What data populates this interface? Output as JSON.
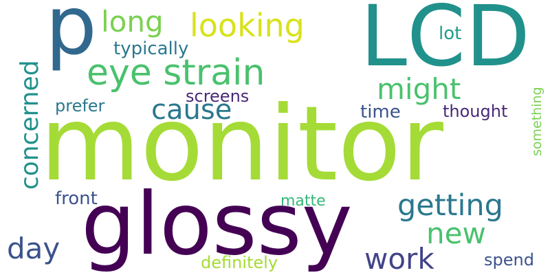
{
  "word_cloud": {
    "words": [
      {
        "text": "monitor",
        "color": "#a5db36"
      },
      {
        "text": "glossy",
        "color": "#440154"
      },
      {
        "text": "LCD",
        "color": "#21918c"
      },
      {
        "text": "p",
        "color": "#31688e"
      },
      {
        "text": "eye strain",
        "color": "#4ac16d"
      },
      {
        "text": "looking",
        "color": "#d8e219"
      },
      {
        "text": "getting",
        "color": "#2a788e"
      },
      {
        "text": "long",
        "color": "#7ad151"
      },
      {
        "text": "concerned",
        "color": "#21918c"
      },
      {
        "text": "might",
        "color": "#4ac16d"
      },
      {
        "text": "cause",
        "color": "#2a788e"
      },
      {
        "text": "new",
        "color": "#4ac16d"
      },
      {
        "text": "work",
        "color": "#414487"
      },
      {
        "text": "day",
        "color": "#3b528b"
      },
      {
        "text": "typically",
        "color": "#2a788e"
      },
      {
        "text": "lot",
        "color": "#1f9e89"
      },
      {
        "text": "screens",
        "color": "#482878"
      },
      {
        "text": "prefer",
        "color": "#2a788e"
      },
      {
        "text": "time",
        "color": "#3b528b"
      },
      {
        "text": "thought",
        "color": "#482878"
      },
      {
        "text": "something",
        "color": "#7ad151"
      },
      {
        "text": "front",
        "color": "#3b528b"
      },
      {
        "text": "matte",
        "color": "#35b779"
      },
      {
        "text": "spend",
        "color": "#3b528b"
      },
      {
        "text": "definitely",
        "color": "#a5db36"
      }
    ]
  }
}
